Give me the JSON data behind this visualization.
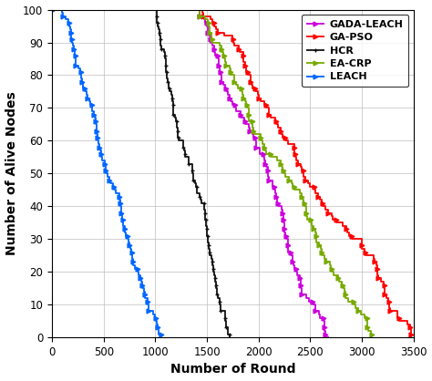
{
  "title": "",
  "xlabel": "Number of Round",
  "ylabel": "Number of Alive Nodes",
  "xlim": [
    0,
    3500
  ],
  "ylim": [
    0,
    100
  ],
  "xticks": [
    0,
    500,
    1000,
    1500,
    2000,
    2500,
    3000,
    3500
  ],
  "yticks": [
    0,
    10,
    20,
    30,
    40,
    50,
    60,
    70,
    80,
    90,
    100
  ],
  "series": [
    {
      "label": "GADA-LEACH",
      "color": "#CC00DD",
      "marker": ">",
      "flat_end": 1430,
      "decline_start": 1430,
      "decline_end": 2680,
      "steepness": 3.5
    },
    {
      "label": "GA-PSO",
      "color": "#FF0000",
      "marker": ">",
      "flat_end": 1430,
      "decline_start": 1430,
      "decline_end": 3480,
      "steepness": 3.5
    },
    {
      "label": "HCR",
      "color": "#111111",
      "marker": "+",
      "flat_end": 1000,
      "decline_start": 1000,
      "decline_end": 1720,
      "steepness": 3.5
    },
    {
      "label": "EA-CRP",
      "color": "#77AA00",
      "marker": ">",
      "flat_end": 1430,
      "decline_start": 1430,
      "decline_end": 3100,
      "steepness": 3.5
    },
    {
      "label": "LEACH",
      "color": "#0066FF",
      "marker": ">",
      "flat_end": 100,
      "decline_start": 100,
      "decline_end": 1060,
      "steepness": 3.0
    }
  ],
  "background_color": "#ffffff",
  "grid_color": "#bbbbbb"
}
